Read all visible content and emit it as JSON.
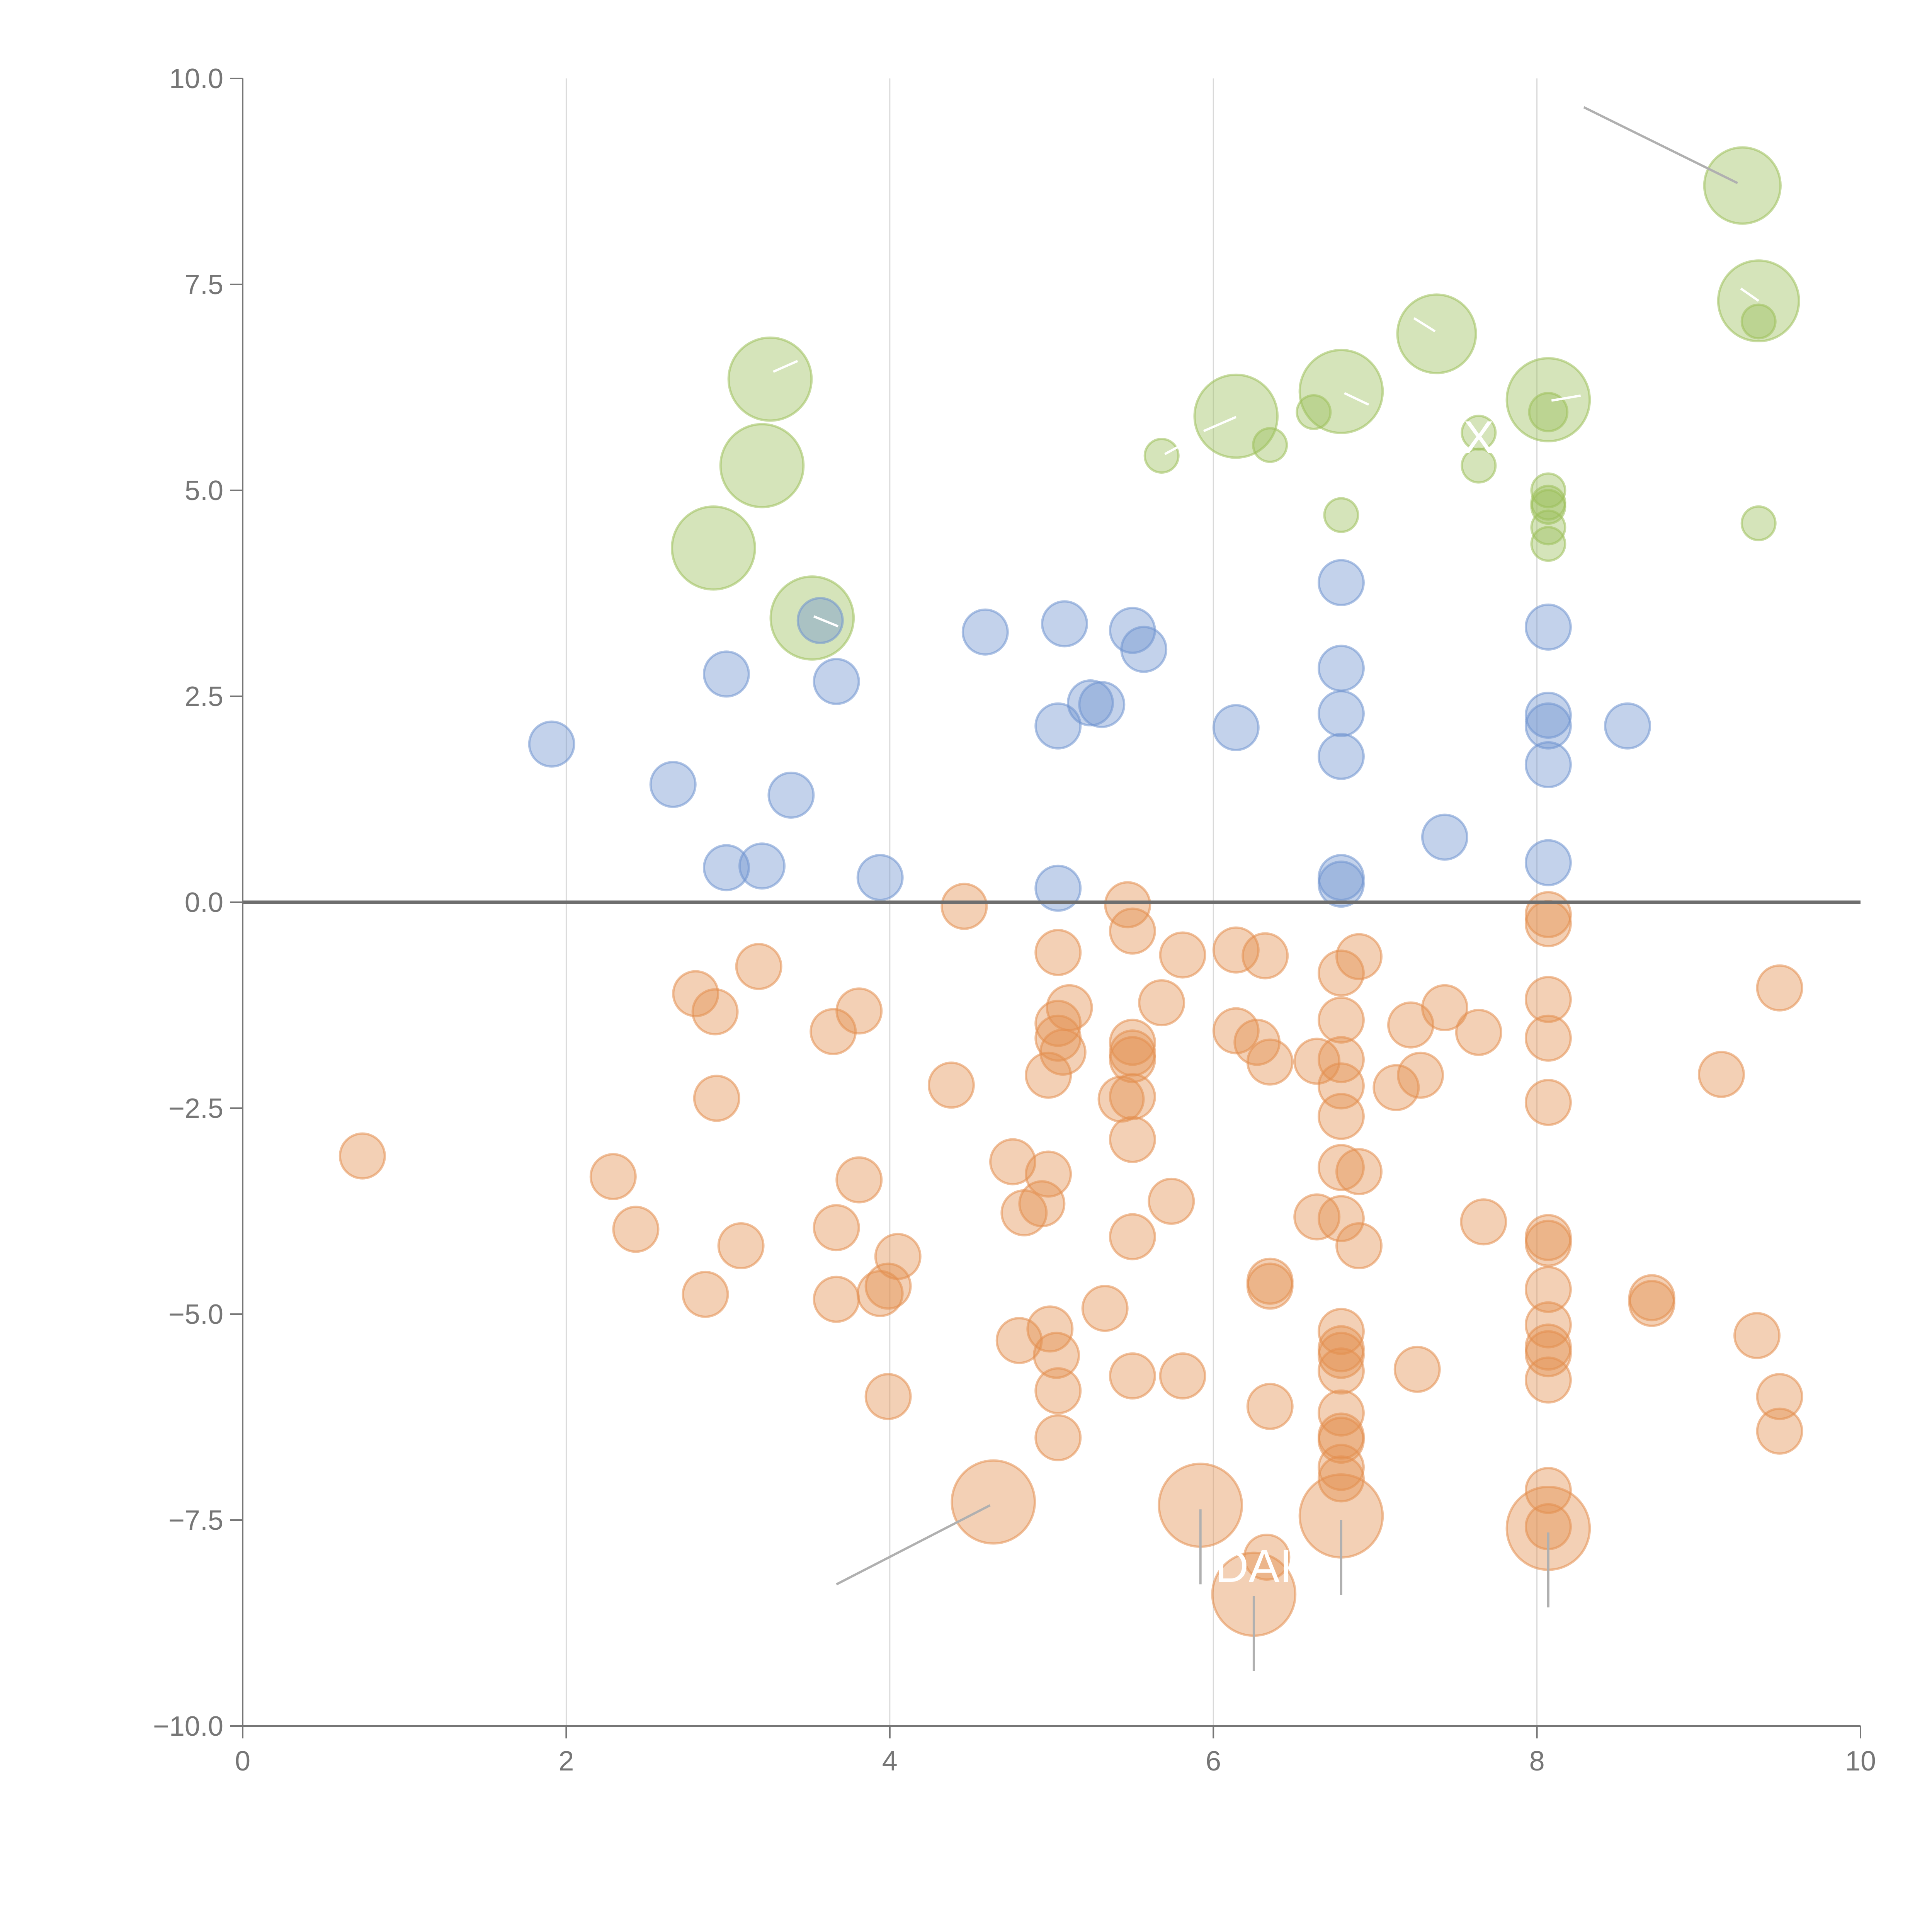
{
  "chart_data": {
    "type": "scatter",
    "subtype": "bubble",
    "title": "",
    "xlabel": "",
    "ylabel": "",
    "xlim": [
      0,
      10
    ],
    "ylim": [
      -10,
      10
    ],
    "x_ticks": [
      "0",
      "2",
      "4",
      "6",
      "8",
      "10"
    ],
    "x_tick_values": [
      0,
      2,
      4,
      6,
      8,
      10
    ],
    "y_ticks": [
      "10.0",
      "7.5",
      "5.0",
      "2.5",
      "0.0",
      "−2.5",
      "−5.0",
      "−7.5",
      "−10.0"
    ],
    "y_tick_values": [
      10,
      7.5,
      5,
      2.5,
      0,
      -2.5,
      -5,
      -7.5,
      -10
    ],
    "grid": "vertical",
    "reference_line_y": 0,
    "colors": {
      "green": "#9cbf5a",
      "blue": "#6f93cf",
      "orange": "#e38e4e",
      "axis": "#767676",
      "grid": "#d9d9d9"
    },
    "series": [
      {
        "name": "green",
        "color": "#9cbf5a",
        "points": [
          {
            "x": 9.27,
            "y": 8.7,
            "r": 1.7
          },
          {
            "x": 9.37,
            "y": 7.3,
            "r": 1.8
          },
          {
            "x": 9.37,
            "y": 7.05,
            "r": 0.75
          },
          {
            "x": 7.38,
            "y": 6.9,
            "r": 1.75
          },
          {
            "x": 8.07,
            "y": 6.1,
            "r": 1.85
          },
          {
            "x": 8.07,
            "y": 5.95,
            "r": 0.85
          },
          {
            "x": 6.79,
            "y": 6.2,
            "r": 1.85
          },
          {
            "x": 6.62,
            "y": 5.95,
            "r": 0.75
          },
          {
            "x": 6.14,
            "y": 5.9,
            "r": 1.85
          },
          {
            "x": 6.35,
            "y": 5.55,
            "r": 0.75
          },
          {
            "x": 5.68,
            "y": 5.42,
            "r": 0.75
          },
          {
            "x": 7.64,
            "y": 5.7,
            "r": 0.75
          },
          {
            "x": 7.64,
            "y": 5.3,
            "r": 0.75
          },
          {
            "x": 3.26,
            "y": 6.35,
            "r": 1.85
          },
          {
            "x": 3.21,
            "y": 5.3,
            "r": 1.85
          },
          {
            "x": 2.91,
            "y": 4.3,
            "r": 1.85
          },
          {
            "x": 3.52,
            "y": 3.45,
            "r": 1.85
          },
          {
            "x": 6.79,
            "y": 4.7,
            "r": 0.75
          },
          {
            "x": 8.07,
            "y": 5.0,
            "r": 0.75
          },
          {
            "x": 8.07,
            "y": 4.85,
            "r": 0.75
          },
          {
            "x": 8.07,
            "y": 4.8,
            "r": 0.75
          },
          {
            "x": 8.07,
            "y": 4.55,
            "r": 0.75
          },
          {
            "x": 8.07,
            "y": 4.35,
            "r": 0.75
          },
          {
            "x": 9.37,
            "y": 4.6,
            "r": 0.75
          }
        ]
      },
      {
        "name": "blue",
        "color": "#6f93cf",
        "points": [
          {
            "x": 1.91,
            "y": 1.92
          },
          {
            "x": 2.66,
            "y": 1.43
          },
          {
            "x": 2.99,
            "y": 2.77
          },
          {
            "x": 2.99,
            "y": 0.42
          },
          {
            "x": 3.21,
            "y": 0.44
          },
          {
            "x": 3.39,
            "y": 1.3
          },
          {
            "x": 3.57,
            "y": 3.42
          },
          {
            "x": 3.67,
            "y": 2.68
          },
          {
            "x": 3.94,
            "y": 0.3
          },
          {
            "x": 4.59,
            "y": 3.28
          },
          {
            "x": 5.04,
            "y": 2.14
          },
          {
            "x": 5.04,
            "y": 0.17
          },
          {
            "x": 5.08,
            "y": 3.38
          },
          {
            "x": 5.24,
            "y": 2.42
          },
          {
            "x": 5.31,
            "y": 2.4
          },
          {
            "x": 5.5,
            "y": 3.3
          },
          {
            "x": 5.57,
            "y": 3.07
          },
          {
            "x": 6.14,
            "y": 2.12
          },
          {
            "x": 6.79,
            "y": 3.88
          },
          {
            "x": 6.79,
            "y": 2.84
          },
          {
            "x": 6.79,
            "y": 2.29
          },
          {
            "x": 6.79,
            "y": 1.77
          },
          {
            "x": 6.79,
            "y": 0.3
          },
          {
            "x": 6.79,
            "y": 0.22
          },
          {
            "x": 7.43,
            "y": 0.79
          },
          {
            "x": 8.07,
            "y": 3.34
          },
          {
            "x": 8.07,
            "y": 2.27
          },
          {
            "x": 8.07,
            "y": 2.14
          },
          {
            "x": 8.07,
            "y": 1.67
          },
          {
            "x": 8.07,
            "y": 0.48
          },
          {
            "x": 8.56,
            "y": 2.14
          }
        ]
      },
      {
        "name": "orange",
        "color": "#e38e4e",
        "points": [
          {
            "x": 0.74,
            "y": -3.08
          },
          {
            "x": 2.29,
            "y": -3.33
          },
          {
            "x": 2.43,
            "y": -3.97
          },
          {
            "x": 2.8,
            "y": -1.11
          },
          {
            "x": 2.92,
            "y": -1.33
          },
          {
            "x": 2.93,
            "y": -2.38
          },
          {
            "x": 2.86,
            "y": -4.76
          },
          {
            "x": 3.08,
            "y": -4.17
          },
          {
            "x": 3.19,
            "y": -0.78
          },
          {
            "x": 3.65,
            "y": -1.57
          },
          {
            "x": 3.67,
            "y": -3.95
          },
          {
            "x": 3.67,
            "y": -4.82
          },
          {
            "x": 3.81,
            "y": -1.32
          },
          {
            "x": 3.81,
            "y": -3.37
          },
          {
            "x": 3.94,
            "y": -4.75
          },
          {
            "x": 3.99,
            "y": -4.66
          },
          {
            "x": 4.05,
            "y": -4.3
          },
          {
            "x": 3.99,
            "y": -6.0
          },
          {
            "x": 4.38,
            "y": -2.22
          },
          {
            "x": 4.46,
            "y": -0.05
          },
          {
            "x": 4.64,
            "y": -7.28,
            "r": 1.85
          },
          {
            "x": 4.76,
            "y": -3.15
          },
          {
            "x": 4.8,
            "y": -5.32
          },
          {
            "x": 4.83,
            "y": -3.77
          },
          {
            "x": 4.94,
            "y": -3.66
          },
          {
            "x": 4.98,
            "y": -2.1
          },
          {
            "x": 4.98,
            "y": -3.3
          },
          {
            "x": 4.99,
            "y": -5.18
          },
          {
            "x": 5.03,
            "y": -5.5
          },
          {
            "x": 5.04,
            "y": -1.47
          },
          {
            "x": 5.04,
            "y": -1.65
          },
          {
            "x": 5.04,
            "y": -5.93
          },
          {
            "x": 5.04,
            "y": -6.5
          },
          {
            "x": 5.04,
            "y": -0.61
          },
          {
            "x": 5.07,
            "y": -1.82
          },
          {
            "x": 5.11,
            "y": -1.28
          },
          {
            "x": 5.33,
            "y": -4.93
          },
          {
            "x": 5.43,
            "y": -2.39
          },
          {
            "x": 5.47,
            "y": -0.03
          },
          {
            "x": 5.5,
            "y": -0.35
          },
          {
            "x": 5.5,
            "y": -1.7
          },
          {
            "x": 5.5,
            "y": -1.83
          },
          {
            "x": 5.5,
            "y": -1.91
          },
          {
            "x": 5.5,
            "y": -2.36
          },
          {
            "x": 5.5,
            "y": -2.88
          },
          {
            "x": 5.5,
            "y": -4.06
          },
          {
            "x": 5.5,
            "y": -5.75
          },
          {
            "x": 5.68,
            "y": -1.22
          },
          {
            "x": 5.74,
            "y": -3.63
          },
          {
            "x": 5.81,
            "y": -0.64
          },
          {
            "x": 5.81,
            "y": -5.75
          },
          {
            "x": 5.92,
            "y": -7.32,
            "r": 1.85
          },
          {
            "x": 6.14,
            "y": -0.58
          },
          {
            "x": 6.14,
            "y": -1.56
          },
          {
            "x": 6.27,
            "y": -1.7
          },
          {
            "x": 6.25,
            "y": -8.4,
            "r": 1.85
          },
          {
            "x": 6.32,
            "y": -0.65
          },
          {
            "x": 6.35,
            "y": -1.94
          },
          {
            "x": 6.35,
            "y": -4.6
          },
          {
            "x": 6.35,
            "y": -4.66
          },
          {
            "x": 6.35,
            "y": -6.12
          },
          {
            "x": 6.33,
            "y": -7.95
          },
          {
            "x": 6.64,
            "y": -1.93
          },
          {
            "x": 6.64,
            "y": -3.82
          },
          {
            "x": 6.79,
            "y": -0.86
          },
          {
            "x": 6.79,
            "y": -1.43
          },
          {
            "x": 6.79,
            "y": -1.91
          },
          {
            "x": 6.79,
            "y": -2.23
          },
          {
            "x": 6.79,
            "y": -2.6
          },
          {
            "x": 6.79,
            "y": -3.22
          },
          {
            "x": 6.79,
            "y": -3.84
          },
          {
            "x": 6.79,
            "y": -5.21
          },
          {
            "x": 6.79,
            "y": -5.42
          },
          {
            "x": 6.79,
            "y": -5.5
          },
          {
            "x": 6.79,
            "y": -5.69
          },
          {
            "x": 6.79,
            "y": -6.2
          },
          {
            "x": 6.79,
            "y": -6.48
          },
          {
            "x": 6.79,
            "y": -6.53
          },
          {
            "x": 6.79,
            "y": -6.86
          },
          {
            "x": 6.79,
            "y": -7.0
          },
          {
            "x": 6.79,
            "y": -7.45,
            "r": 1.85
          },
          {
            "x": 6.9,
            "y": -0.66
          },
          {
            "x": 6.9,
            "y": -3.27
          },
          {
            "x": 6.9,
            "y": -4.17
          },
          {
            "x": 7.13,
            "y": -2.25
          },
          {
            "x": 7.22,
            "y": -1.49
          },
          {
            "x": 7.28,
            "y": -2.1
          },
          {
            "x": 7.26,
            "y": -5.67
          },
          {
            "x": 7.43,
            "y": -1.28
          },
          {
            "x": 7.64,
            "y": -1.58
          },
          {
            "x": 7.67,
            "y": -3.88
          },
          {
            "x": 8.07,
            "y": -0.15
          },
          {
            "x": 8.07,
            "y": -0.26
          },
          {
            "x": 8.07,
            "y": -1.18
          },
          {
            "x": 8.07,
            "y": -1.65
          },
          {
            "x": 8.07,
            "y": -2.43
          },
          {
            "x": 8.07,
            "y": -4.07
          },
          {
            "x": 8.07,
            "y": -4.14
          },
          {
            "x": 8.07,
            "y": -4.7
          },
          {
            "x": 8.07,
            "y": -5.13
          },
          {
            "x": 8.07,
            "y": -5.4
          },
          {
            "x": 8.07,
            "y": -5.48
          },
          {
            "x": 8.07,
            "y": -5.8
          },
          {
            "x": 8.07,
            "y": -7.14
          },
          {
            "x": 8.07,
            "y": -7.6,
            "r": 1.85
          },
          {
            "x": 8.07,
            "y": -7.58
          },
          {
            "x": 8.71,
            "y": -4.8
          },
          {
            "x": 8.71,
            "y": -4.87
          },
          {
            "x": 9.14,
            "y": -2.09
          },
          {
            "x": 9.36,
            "y": -5.26
          },
          {
            "x": 9.5,
            "y": -1.04
          },
          {
            "x": 9.5,
            "y": -6.0
          },
          {
            "x": 9.5,
            "y": -6.42
          }
        ]
      }
    ],
    "annotations": [
      {
        "label": "",
        "line": [
          [
            8.29,
            9.65
          ],
          [
            9.24,
            8.73
          ]
        ],
        "color": "#b0b0b0"
      },
      {
        "label": "",
        "line": [
          [
            3.67,
            -8.28
          ],
          [
            4.62,
            -7.32
          ]
        ],
        "color": "#b0b0b0"
      },
      {
        "label": "",
        "line": [
          [
            5.92,
            -7.37
          ],
          [
            5.92,
            -8.28
          ]
        ],
        "color": "#b0b0b0"
      },
      {
        "label": "",
        "line": [
          [
            6.25,
            -8.42
          ],
          [
            6.25,
            -9.33
          ]
        ],
        "color": "#b0b0b0"
      },
      {
        "label": "",
        "line": [
          [
            6.79,
            -7.5
          ],
          [
            6.79,
            -8.41
          ]
        ],
        "color": "#b0b0b0"
      },
      {
        "label": "",
        "line": [
          [
            8.07,
            -7.65
          ],
          [
            8.07,
            -8.56
          ]
        ],
        "color": "#b0b0b0"
      },
      {
        "label": "",
        "line": [
          [
            3.28,
            6.44
          ],
          [
            3.43,
            6.57
          ]
        ],
        "color": "#ffffff"
      },
      {
        "label": "",
        "line": [
          [
            3.53,
            3.47
          ],
          [
            3.68,
            3.35
          ]
        ],
        "color": "#ffffff"
      },
      {
        "label": "",
        "line": [
          [
            5.94,
            5.72
          ],
          [
            6.14,
            5.89
          ]
        ],
        "color": "#ffffff"
      },
      {
        "label": "",
        "line": [
          [
            6.81,
            6.18
          ],
          [
            6.96,
            6.04
          ]
        ],
        "color": "#ffffff"
      },
      {
        "label": "",
        "line": [
          [
            7.24,
            7.09
          ],
          [
            7.37,
            6.93
          ]
        ],
        "color": "#ffffff"
      },
      {
        "label": "",
        "line": [
          [
            8.09,
            6.09
          ],
          [
            8.27,
            6.15
          ]
        ],
        "color": "#ffffff"
      },
      {
        "label": "",
        "line": [
          [
            9.26,
            7.45
          ],
          [
            9.37,
            7.3
          ]
        ],
        "color": "#ffffff"
      },
      {
        "label": "",
        "line": [
          [
            5.7,
            5.44
          ],
          [
            5.85,
            5.6
          ]
        ],
        "color": "#ffffff"
      },
      {
        "label": "X",
        "at": [
          7.64,
          5.45
        ],
        "color": "#ffffff"
      },
      {
        "label": "DAI",
        "at": [
          6.25,
          -8.25
        ],
        "color": "#ffffff"
      }
    ]
  }
}
